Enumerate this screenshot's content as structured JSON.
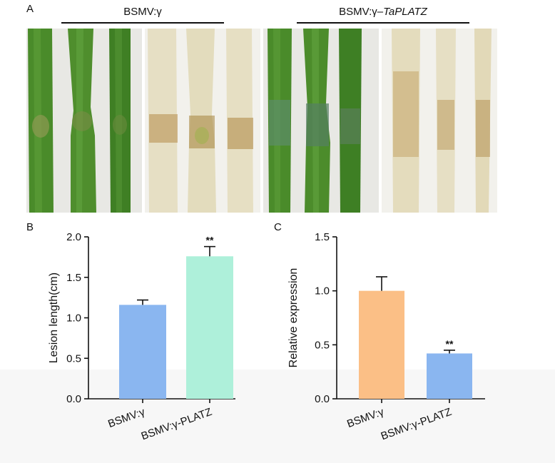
{
  "panel_a": {
    "label": "A",
    "groups": [
      {
        "title": "BSMV:γ"
      },
      {
        "title_prefix": "BSMV:γ–",
        "title_gene": "TaPLATZ"
      }
    ],
    "photos": [
      {
        "kind": "green-leaves",
        "leaf_color": "#4f8a2c",
        "lesion": "mild"
      },
      {
        "kind": "cleared-leaves",
        "leaf_color": "#e4dcc0",
        "lesion": "mild"
      },
      {
        "kind": "green-leaves",
        "leaf_color": "#4f8a2c",
        "lesion": "strong"
      },
      {
        "kind": "cleared-leaves",
        "leaf_color": "#e4dcc0",
        "lesion": "strong"
      }
    ]
  },
  "chart_data": [
    {
      "panel": "B",
      "type": "bar",
      "categories": [
        "BSMV:γ",
        "BSMV:γ-PLATZ"
      ],
      "values": [
        1.16,
        1.76
      ],
      "errors": [
        0.06,
        0.12
      ],
      "annotations": [
        "",
        "**"
      ],
      "colors": [
        "#8ab6f0",
        "#aef0da"
      ],
      "ylabel": "Lesion length(cm)",
      "ylim": [
        0,
        2.0
      ],
      "yticks": [
        "0.0",
        "0.5",
        "1.0",
        "1.5",
        "2.0"
      ]
    },
    {
      "panel": "C",
      "type": "bar",
      "categories": [
        "BSMV:γ",
        "BSMV:γ-PLATZ"
      ],
      "values": [
        1.0,
        0.42
      ],
      "errors": [
        0.13,
        0.03
      ],
      "annotations": [
        "",
        "**"
      ],
      "colors": [
        "#fbbf86",
        "#8ab6f0"
      ],
      "ylabel": "Relative expression",
      "ylim": [
        0,
        1.5
      ],
      "yticks": [
        "0.0",
        "0.5",
        "1.0",
        "1.5"
      ]
    }
  ]
}
